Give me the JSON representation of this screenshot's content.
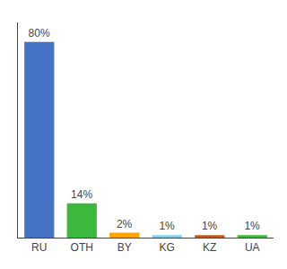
{
  "chart_data": {
    "type": "bar",
    "categories": [
      "RU",
      "OTH",
      "BY",
      "KG",
      "KZ",
      "UA"
    ],
    "values": [
      80,
      14,
      2,
      1,
      1,
      1
    ],
    "value_labels": [
      "80%",
      "14%",
      "2%",
      "1%",
      "1%",
      "1%"
    ],
    "colors": [
      "#4472C4",
      "#3CB83C",
      "#FFA500",
      "#87CEEB",
      "#C05820",
      "#3CB83C"
    ],
    "ylim": [
      0,
      88
    ],
    "data_labels": true,
    "tick_labels": "x",
    "grid": false
  }
}
